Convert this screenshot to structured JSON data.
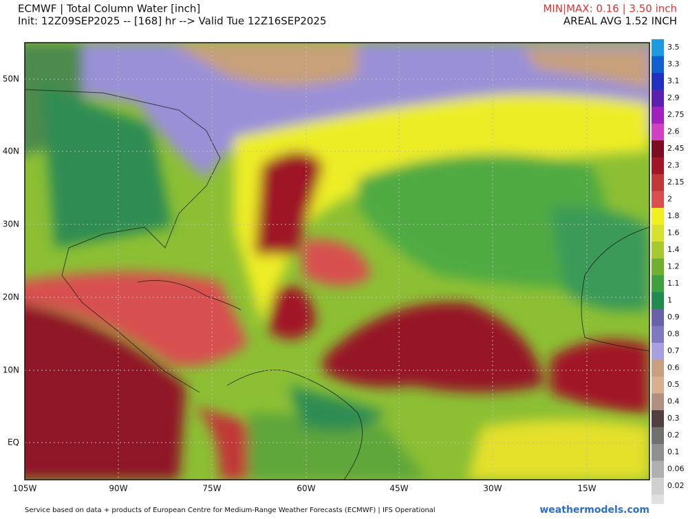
{
  "header": {
    "title": "ECMWF | Total Column Water [inch]",
    "subtitle": "Init: 12Z09SEP2025 -- [168] hr --> Valid Tue 12Z16SEP2025",
    "minmax": "MIN|MAX: 0.16 | 3.50 inch",
    "areal_avg": "AREAL AVG 1.52 INCH"
  },
  "map": {
    "lat_labels": [
      "50N",
      "40N",
      "30N",
      "20N",
      "10N",
      "EQ"
    ],
    "lon_labels": [
      "105W",
      "90W",
      "75W",
      "60W",
      "45W",
      "30W",
      "15W"
    ]
  },
  "colorbar": {
    "labels": [
      "3.5",
      "3.3",
      "3.1",
      "2.9",
      "2.75",
      "2.6",
      "2.45",
      "2.3",
      "2.15",
      "2",
      "1.8",
      "1.6",
      "1.4",
      "1.2",
      "1.1",
      "1",
      "0.9",
      "0.8",
      "0.7",
      "0.6",
      "0.5",
      "0.4",
      "0.3",
      "0.2",
      "0.1",
      "0.06",
      "0.02"
    ]
  },
  "footer": {
    "credit": "Service based on data + products of European Centre for Medium-Range Weather Forecasts (ECMWF) | IFS Operational",
    "brand": "weathermodels.com"
  }
}
